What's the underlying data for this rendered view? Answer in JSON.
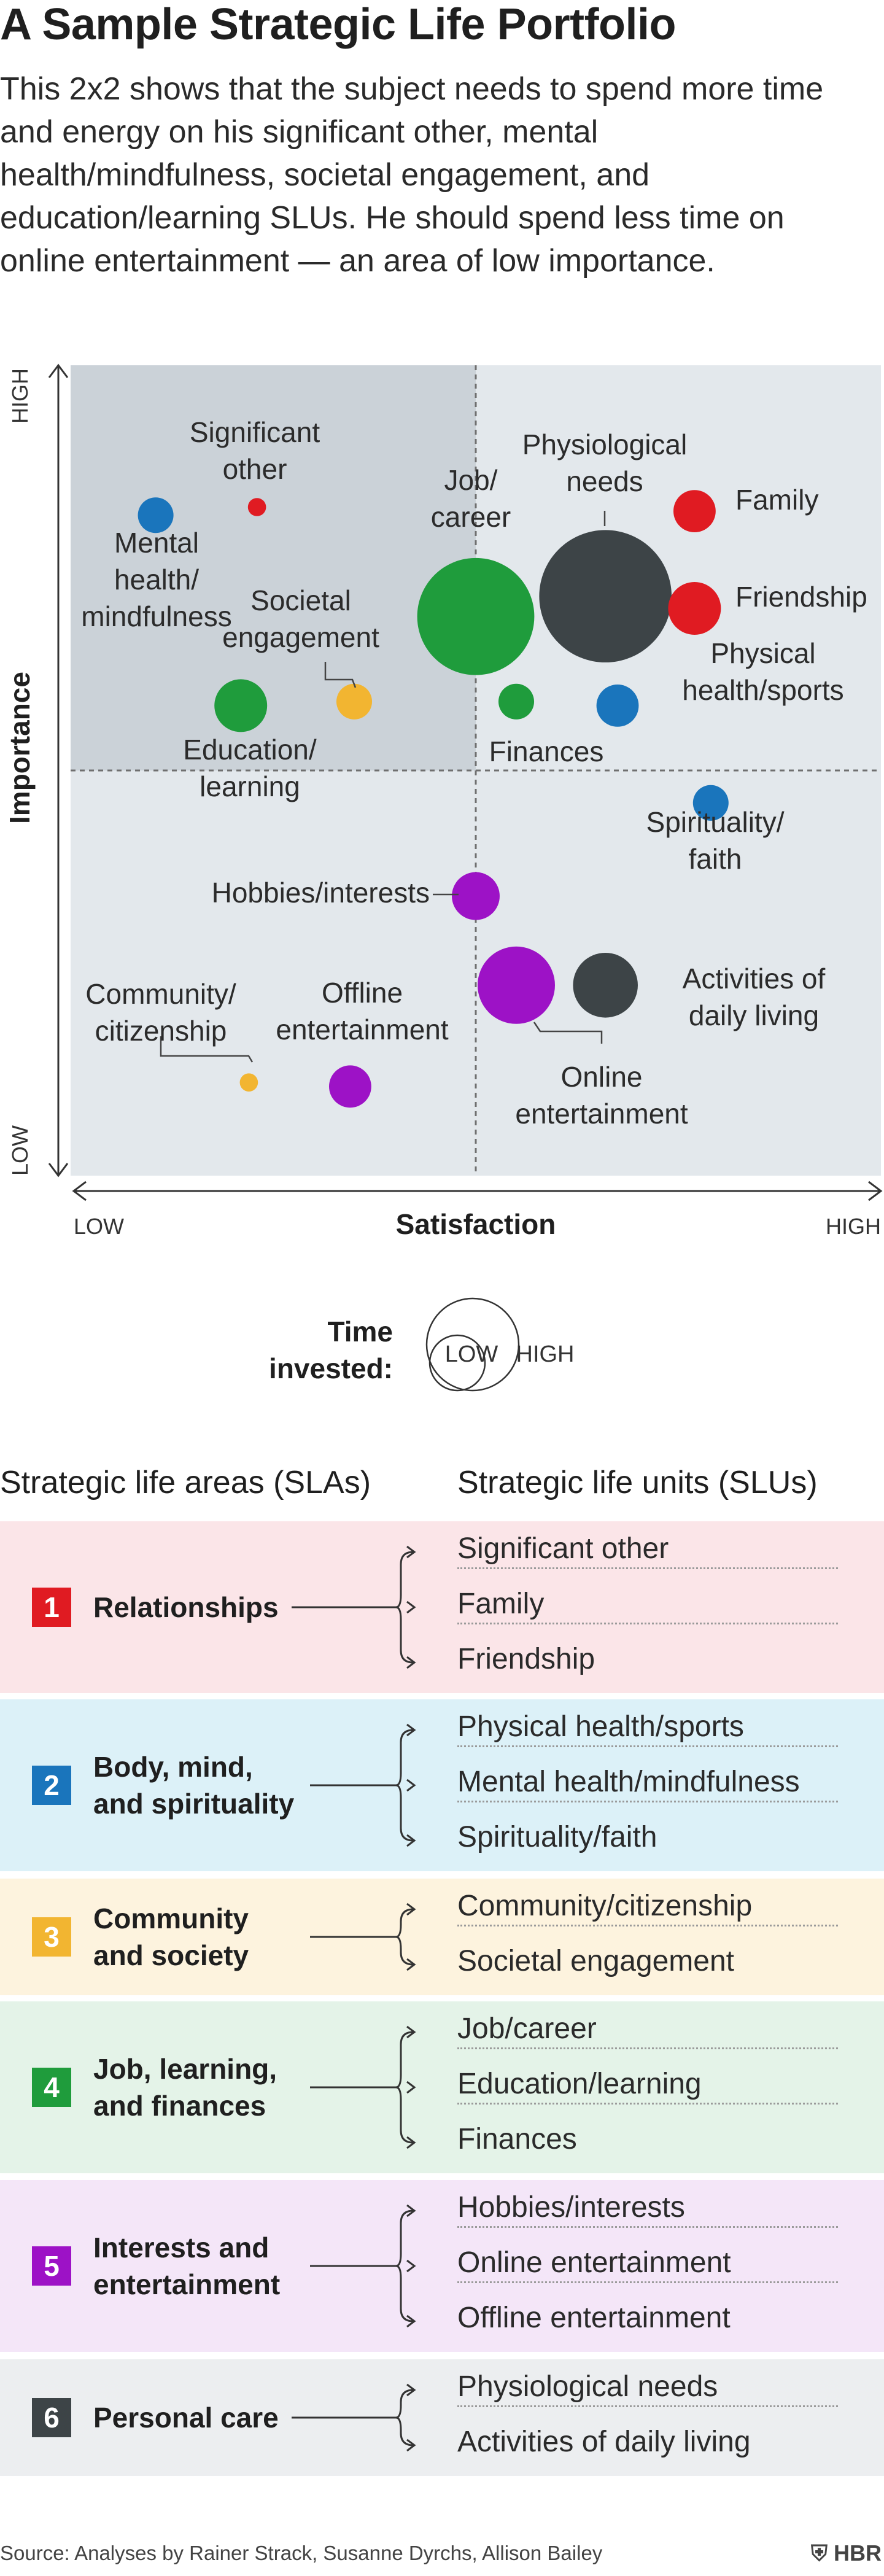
{
  "title": "A Sample Strategic Life Portfolio",
  "subtitle": "This 2x2 shows that the subject needs to spend more time and energy on his significant other, mental health/mindfulness, societal engagement, and education/learning SLUs. He should spend less time on online entertainment — an area of low importance.",
  "colors": {
    "relationships": "#e01b22",
    "body_mind": "#1a75bc",
    "community": "#f2b531",
    "job": "#1f9c3c",
    "interests": "#9d12c6",
    "personal_care": "#3d4447",
    "quadrant_dark": "#cbd2d8",
    "quadrant_light": "#e3e8ec"
  },
  "chart_data": {
    "type": "scatter",
    "xlabel": "Satisfaction",
    "ylabel": "Importance",
    "x_tick_low": "LOW",
    "x_tick_high": "HIGH",
    "y_tick_low": "LOW",
    "y_tick_high": "HIGH",
    "xlim": [
      0,
      100
    ],
    "ylim": [
      0,
      100
    ],
    "midlines": {
      "x": 50,
      "y": 50
    },
    "size_legend": {
      "label": "Time invested:",
      "low": "LOW",
      "high": "HIGH"
    },
    "points": [
      {
        "name": "Significant other",
        "label": "Significant\nother",
        "x": 23,
        "y": 82.5,
        "size": 0.4,
        "group": "relationships"
      },
      {
        "name": "Family",
        "label": "Family",
        "x": 77,
        "y": 82,
        "size": 3.6,
        "group": "relationships"
      },
      {
        "name": "Friendship",
        "label": "Friendship",
        "x": 77,
        "y": 70,
        "size": 6.0,
        "group": "relationships"
      },
      {
        "name": "Mental health/mindfulness",
        "label": "Mental\nhealth/\nmindfulness",
        "x": 10.5,
        "y": 81.5,
        "size": 2.4,
        "group": "body_mind"
      },
      {
        "name": "Physical health/sports",
        "label": "Physical\nhealth/sports",
        "x": 67.5,
        "y": 58,
        "size": 3.6,
        "group": "body_mind"
      },
      {
        "name": "Spirituality/faith",
        "label": "Spirituality/\nfaith",
        "x": 79,
        "y": 46,
        "size": 2.4,
        "group": "body_mind"
      },
      {
        "name": "Community/citizenship",
        "label": "Community/\ncitizenship",
        "x": 22,
        "y": 11.5,
        "size": 0.4,
        "group": "community"
      },
      {
        "name": "Societal engagement",
        "label": "Societal\nengagement",
        "x": 35,
        "y": 58.5,
        "size": 2.4,
        "group": "community"
      },
      {
        "name": "Job/career",
        "label": "Job/\ncareer",
        "x": 50,
        "y": 69,
        "size": 34.0,
        "group": "job"
      },
      {
        "name": "Education/learning",
        "label": "Education/\nlearning",
        "x": 21,
        "y": 58,
        "size": 6.0,
        "group": "job"
      },
      {
        "name": "Finances",
        "label": "Finances",
        "x": 55,
        "y": 58.5,
        "size": 2.4,
        "group": "job"
      },
      {
        "name": "Hobbies/interests",
        "label": "Hobbies/interests",
        "x": 50,
        "y": 34.5,
        "size": 4.8,
        "group": "interests"
      },
      {
        "name": "Online entertainment",
        "label": "Online\nentertainment",
        "x": 55,
        "y": 23.5,
        "size": 14.0,
        "group": "interests"
      },
      {
        "name": "Offline entertainment",
        "label": "Offline\nentertainment",
        "x": 34.5,
        "y": 11,
        "size": 3.6,
        "group": "interests"
      },
      {
        "name": "Physiological needs",
        "label": "Physiological\nneeds",
        "x": 66,
        "y": 71.5,
        "size": 44.0,
        "group": "personal_care"
      },
      {
        "name": "Activities of daily living",
        "label": "Activities of\ndaily living",
        "x": 66,
        "y": 23.5,
        "size": 9.5,
        "group": "personal_care"
      }
    ]
  },
  "table": {
    "col_sla": "Strategic life areas (SLAs)",
    "col_slu": "Strategic life units (SLUs)",
    "areas": [
      {
        "num": "1",
        "name": "Relationships",
        "group": "relationships",
        "bg": "#fbe5e8",
        "units": [
          "Significant other",
          "Family",
          "Friendship"
        ]
      },
      {
        "num": "2",
        "name": "Body, mind,\nand spirituality",
        "group": "body_mind",
        "bg": "#dcf1f8",
        "units": [
          "Physical health/sports",
          "Mental health/mindfulness",
          "Spirituality/faith"
        ]
      },
      {
        "num": "3",
        "name": "Community\nand society",
        "group": "community",
        "bg": "#fdf3de",
        "units": [
          "Community/citizenship",
          "Societal engagement"
        ]
      },
      {
        "num": "4",
        "name": "Job, learning,\nand finances",
        "group": "job",
        "bg": "#e4f3e8",
        "units": [
          "Job/career",
          "Education/learning",
          "Finances"
        ]
      },
      {
        "num": "5",
        "name": "Interests and\nentertainment",
        "group": "interests",
        "bg": "#f4e6f8",
        "units": [
          "Hobbies/interests",
          "Online entertainment",
          "Offline entertainment"
        ]
      },
      {
        "num": "6",
        "name": "Personal care",
        "group": "personal_care",
        "bg": "#eceef0",
        "units": [
          "Physiological needs",
          "Activities of daily living"
        ]
      }
    ]
  },
  "source": "Source: Analyses by Rainer Strack, Susanne Dyrchs, Allison Bailey",
  "brand": "HBR"
}
